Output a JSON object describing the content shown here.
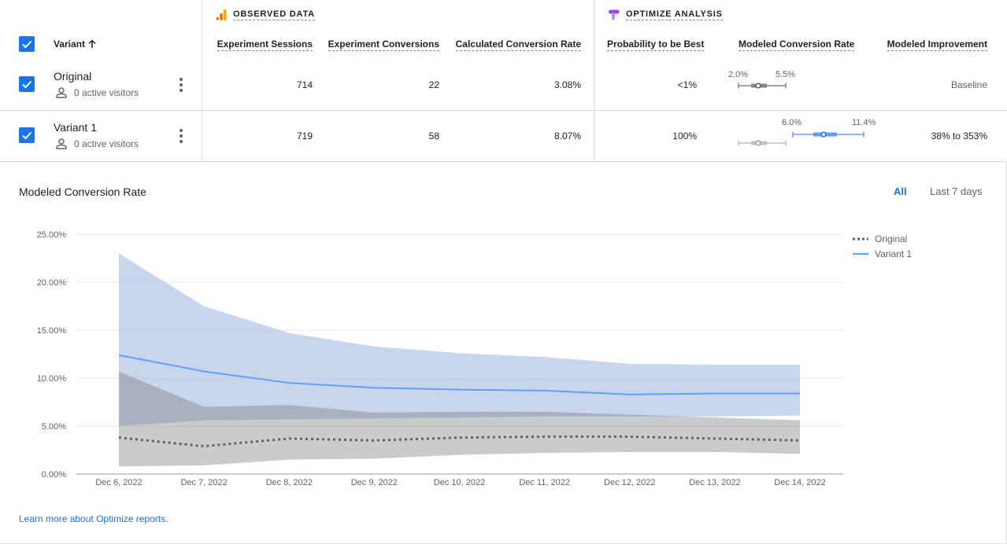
{
  "table": {
    "observed_group": "OBSERVED DATA",
    "optimize_group": "OPTIMIZE ANALYSIS",
    "columns": {
      "variant": "Variant",
      "sessions": "Experiment Sessions",
      "conversions": "Experiment Conversions",
      "conv_rate": "Calculated Conversion Rate",
      "prob_best": "Probability to be Best",
      "modeled_rate": "Modeled Conversion Rate",
      "improvement": "Modeled Improvement"
    },
    "rows": [
      {
        "name": "Original",
        "visitors": "0 active visitors",
        "sessions": "714",
        "conversions": "22",
        "conv_rate": "3.08%",
        "prob_best": "<1%",
        "range_low": "2.0%",
        "range_high": "5.5%",
        "improvement": "Baseline"
      },
      {
        "name": "Variant 1",
        "visitors": "0 active visitors",
        "sessions": "719",
        "conversions": "58",
        "conv_rate": "8.07%",
        "prob_best": "100%",
        "range_low": "6.0%",
        "range_high": "11.4%",
        "improvement": "38% to 353%"
      }
    ]
  },
  "chart_header": {
    "title": "Modeled Conversion Rate",
    "range_all": "All",
    "range_7d": "Last 7 days"
  },
  "footer": {
    "link": "Learn more about Optimize reports."
  },
  "colors": {
    "accent": "#1a73e8",
    "original": "#5f6368",
    "variant": "#669df6"
  },
  "chart_data": {
    "type": "line",
    "title": "",
    "x": [
      "Dec 6, 2022",
      "Dec 7, 2022",
      "Dec 8, 2022",
      "Dec 9, 2022",
      "Dec 10, 2022",
      "Dec 11, 2022",
      "Dec 12, 2022",
      "Dec 13, 2022",
      "Dec 14, 2022"
    ],
    "y_ticks": [
      "0.00%",
      "5.00%",
      "10.00%",
      "15.00%",
      "20.00%",
      "25.00%"
    ],
    "ylim": [
      0,
      25
    ],
    "grid": true,
    "legend_position": "top-right",
    "series": [
      {
        "name": "Original",
        "style": "dotted",
        "values": [
          3.8,
          2.9,
          3.7,
          3.5,
          3.8,
          3.9,
          3.9,
          3.7,
          3.5
        ],
        "lower": [
          0.8,
          0.9,
          1.5,
          1.6,
          2.0,
          2.2,
          2.3,
          2.3,
          2.1
        ],
        "upper": [
          10.7,
          7.0,
          7.2,
          6.4,
          6.5,
          6.5,
          6.2,
          5.9,
          5.6
        ]
      },
      {
        "name": "Variant 1",
        "style": "solid",
        "values": [
          12.4,
          10.7,
          9.5,
          9.0,
          8.8,
          8.7,
          8.3,
          8.4,
          8.4
        ],
        "lower": [
          5.0,
          5.6,
          5.7,
          5.8,
          5.9,
          6.0,
          6.0,
          6.0,
          6.1
        ],
        "upper": [
          23.0,
          17.5,
          14.7,
          13.3,
          12.6,
          12.2,
          11.5,
          11.4,
          11.4
        ]
      }
    ]
  }
}
